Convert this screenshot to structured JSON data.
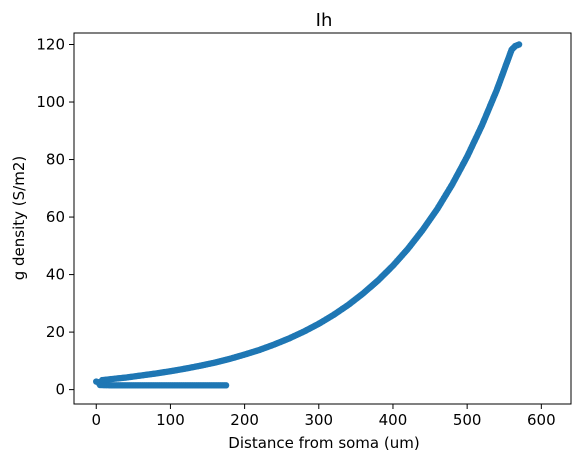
{
  "chart_data": {
    "type": "scatter",
    "title": "Ih",
    "xlabel": "Distance from soma (um)",
    "ylabel": "g density (S/m2)",
    "xlim": [
      -30,
      640
    ],
    "ylim": [
      -5,
      124
    ],
    "xticks": [
      0,
      100,
      200,
      300,
      400,
      500,
      600
    ],
    "yticks": [
      0,
      20,
      40,
      60,
      80,
      100,
      120
    ],
    "grid": false,
    "marker_color": "#1f77b4",
    "series": [
      {
        "points": [
          [
            0,
            2.8
          ],
          [
            3,
            2.6
          ],
          [
            5,
            1.6
          ],
          [
            10,
            1.55
          ],
          [
            20,
            1.5
          ],
          [
            30,
            1.5
          ],
          [
            40,
            1.5
          ],
          [
            50,
            1.5
          ],
          [
            60,
            1.5
          ],
          [
            70,
            1.5
          ],
          [
            80,
            1.5
          ],
          [
            90,
            1.5
          ],
          [
            100,
            1.5
          ],
          [
            110,
            1.5
          ],
          [
            120,
            1.5
          ],
          [
            130,
            1.5
          ],
          [
            140,
            1.5
          ],
          [
            150,
            1.5
          ],
          [
            160,
            1.5
          ],
          [
            170,
            1.5
          ],
          [
            175,
            1.5
          ],
          [
            8,
            3.3
          ],
          [
            15,
            3.5
          ],
          [
            25,
            3.8
          ],
          [
            40,
            4.2
          ],
          [
            60,
            4.9
          ],
          [
            80,
            5.6
          ],
          [
            100,
            6.4
          ],
          [
            120,
            7.3
          ],
          [
            140,
            8.3
          ],
          [
            160,
            9.4
          ],
          [
            180,
            10.7
          ],
          [
            200,
            12.2
          ],
          [
            220,
            13.8
          ],
          [
            240,
            15.7
          ],
          [
            260,
            17.8
          ],
          [
            280,
            20.2
          ],
          [
            300,
            22.9
          ],
          [
            320,
            26.0
          ],
          [
            340,
            29.5
          ],
          [
            360,
            33.5
          ],
          [
            380,
            38.0
          ],
          [
            400,
            43.1
          ],
          [
            420,
            48.9
          ],
          [
            440,
            55.5
          ],
          [
            460,
            62.9
          ],
          [
            480,
            71.4
          ],
          [
            500,
            81.0
          ],
          [
            520,
            91.9
          ],
          [
            540,
            104.2
          ],
          [
            560,
            118.2
          ],
          [
            565,
            119.5
          ],
          [
            570,
            120.0
          ]
        ]
      }
    ]
  }
}
